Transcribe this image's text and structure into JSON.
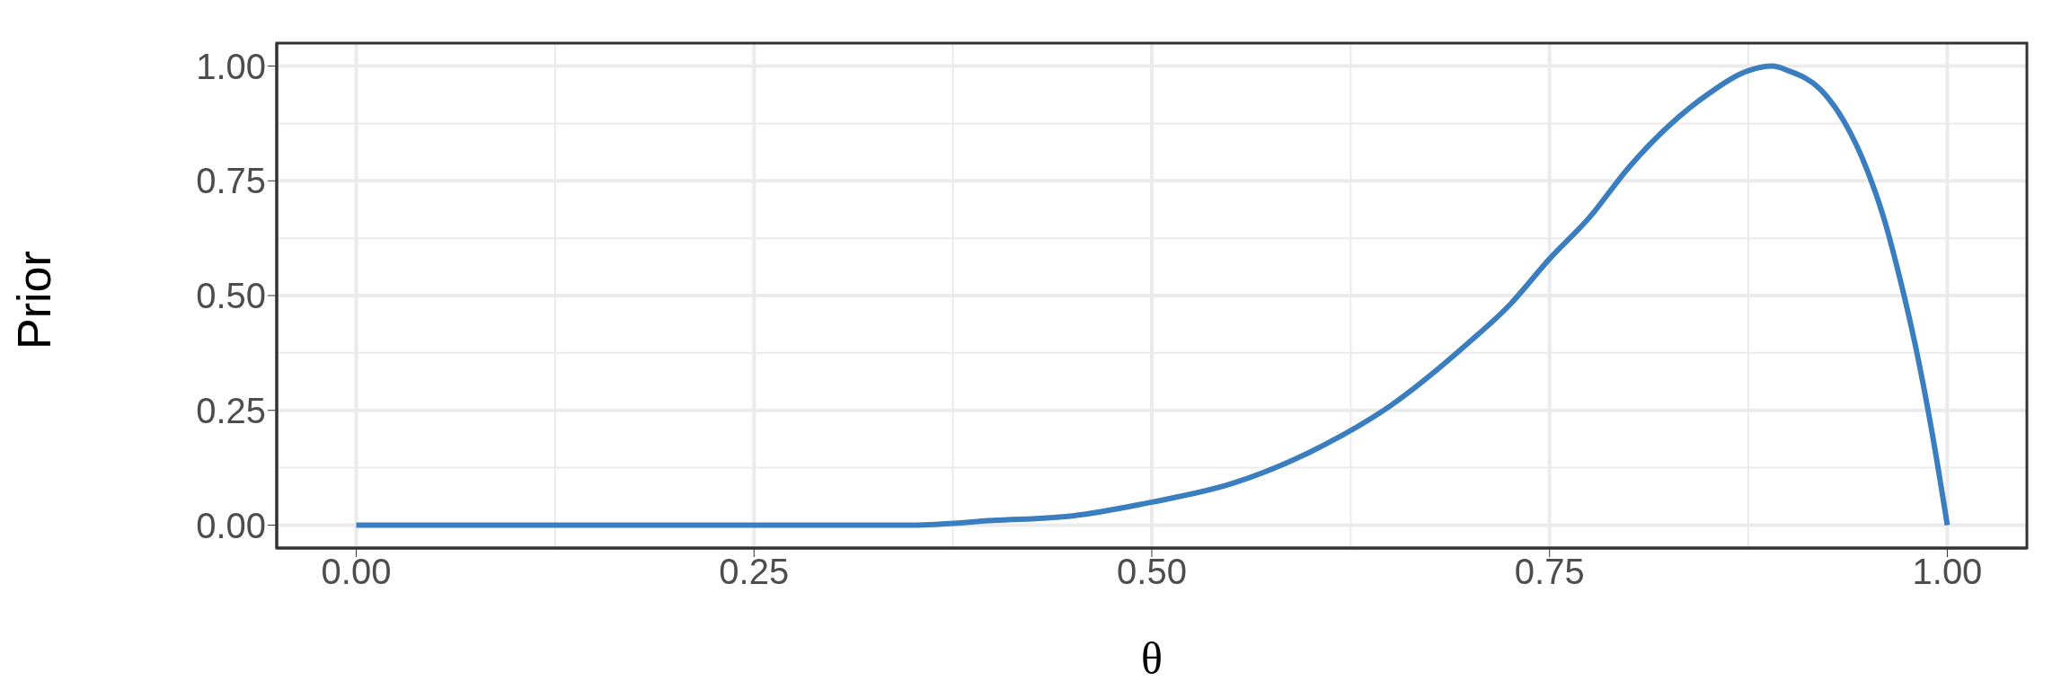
{
  "chart_data": {
    "type": "line",
    "xlabel": "θ",
    "ylabel": "Prior",
    "x": [
      0,
      0.1,
      0.2,
      0.3,
      0.35,
      0.4,
      0.45,
      0.5,
      0.55,
      0.6,
      0.65,
      0.7,
      0.725,
      0.75,
      0.775,
      0.8,
      0.825,
      0.85,
      0.875,
      0.89,
      0.9,
      0.92,
      0.935,
      0.95,
      0.96,
      0.97,
      0.98,
      0.99,
      1
    ],
    "series": [
      {
        "color": "#3a7ebf",
        "values": [
          0,
          0,
          0,
          0,
          0,
          0.01,
          0.02,
          0.05,
          0.09,
          0.16,
          0.26,
          0.4,
          0.48,
          0.58,
          0.67,
          0.78,
          0.87,
          0.94,
          0.99,
          1,
          0.99,
          0.95,
          0.88,
          0.77,
          0.67,
          0.54,
          0.39,
          0.21,
          0
        ]
      }
    ],
    "xlim": [
      -0.05,
      1.05
    ],
    "ylim": [
      -0.05,
      1.05
    ],
    "xticks": [
      {
        "value": 0,
        "label": "0.00"
      },
      {
        "value": 0.25,
        "label": "0.25"
      },
      {
        "value": 0.5,
        "label": "0.50"
      },
      {
        "value": 0.75,
        "label": "0.75"
      },
      {
        "value": 1,
        "label": "1.00"
      }
    ],
    "yticks": [
      {
        "value": 0,
        "label": "0.00"
      },
      {
        "value": 0.25,
        "label": "0.25"
      },
      {
        "value": 0.5,
        "label": "0.50"
      },
      {
        "value": 0.75,
        "label": "0.75"
      },
      {
        "value": 1,
        "label": "1.00"
      }
    ],
    "grid": true,
    "legend": false,
    "marker": "none",
    "line_style": "solid"
  }
}
